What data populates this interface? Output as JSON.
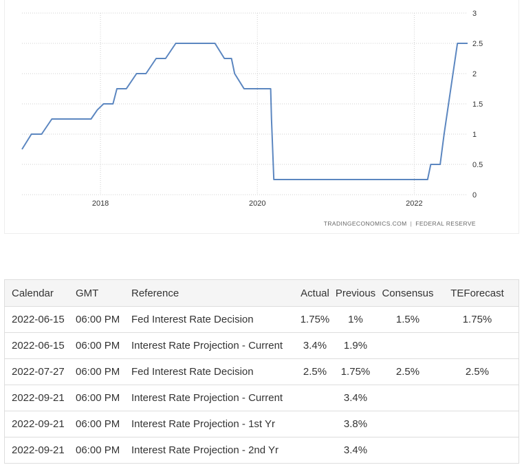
{
  "chart_data": {
    "type": "line",
    "title": "",
    "xlabel": "",
    "ylabel": "",
    "y_axis_side": "right",
    "ylim": [
      0,
      3
    ],
    "yticks": [
      "0",
      "0.5",
      "1",
      "1.5",
      "2",
      "2.5",
      "3"
    ],
    "x_ticks": [
      {
        "value": 2018,
        "label": "2018"
      },
      {
        "value": 2020,
        "label": "2020"
      },
      {
        "value": 2022,
        "label": "2022"
      }
    ],
    "xlim": [
      2017.0,
      2022.68
    ],
    "grid": true,
    "line_color": "#5b86c0",
    "series": [
      {
        "x": [
          2017.0,
          2017.12,
          2017.25,
          2017.38,
          2017.5,
          2017.88,
          2017.96,
          2018.04,
          2018.16,
          2018.21,
          2018.33,
          2018.46,
          2018.58,
          2018.71,
          2018.83,
          2018.96,
          2019.46,
          2019.58,
          2019.67,
          2019.71,
          2019.83,
          2020.17,
          2020.18,
          2020.21,
          2022.17,
          2022.21,
          2022.33,
          2022.38,
          2022.55,
          2022.68
        ],
        "y": [
          0.75,
          1.0,
          1.0,
          1.25,
          1.25,
          1.25,
          1.4,
          1.5,
          1.5,
          1.75,
          1.75,
          2.0,
          2.0,
          2.25,
          2.25,
          2.5,
          2.5,
          2.25,
          2.25,
          2.0,
          1.75,
          1.75,
          1.25,
          0.25,
          0.25,
          0.5,
          0.5,
          1.0,
          2.5,
          2.5
        ]
      }
    ]
  },
  "source": {
    "site": "TRADINGECONOMICS.COM",
    "separator": "|",
    "provider": "FEDERAL RESERVE"
  },
  "table": {
    "headers": {
      "calendar": "Calendar",
      "gmt": "GMT",
      "reference": "Reference",
      "actual": "Actual",
      "previous": "Previous",
      "consensus": "Consensus",
      "teforecast": "TEForecast"
    },
    "rows": [
      {
        "calendar": "2022-06-15",
        "gmt": "06:00 PM",
        "reference": "Fed Interest Rate Decision",
        "actual": "1.75%",
        "previous": "1%",
        "consensus": "1.5%",
        "teforecast": "1.75%"
      },
      {
        "calendar": "2022-06-15",
        "gmt": "06:00 PM",
        "reference": "Interest Rate Projection - Current",
        "actual": "3.4%",
        "previous": "1.9%",
        "consensus": "",
        "teforecast": ""
      },
      {
        "calendar": "2022-07-27",
        "gmt": "06:00 PM",
        "reference": "Fed Interest Rate Decision",
        "actual": "2.5%",
        "previous": "1.75%",
        "consensus": "2.5%",
        "teforecast": "2.5%"
      },
      {
        "calendar": "2022-09-21",
        "gmt": "06:00 PM",
        "reference": "Interest Rate Projection - Current",
        "actual": "",
        "previous": "3.4%",
        "consensus": "",
        "teforecast": ""
      },
      {
        "calendar": "2022-09-21",
        "gmt": "06:00 PM",
        "reference": "Interest Rate Projection - 1st Yr",
        "actual": "",
        "previous": "3.8%",
        "consensus": "",
        "teforecast": ""
      },
      {
        "calendar": "2022-09-21",
        "gmt": "06:00 PM",
        "reference": "Interest Rate Projection - 2nd Yr",
        "actual": "",
        "previous": "3.4%",
        "consensus": "",
        "teforecast": ""
      }
    ]
  }
}
